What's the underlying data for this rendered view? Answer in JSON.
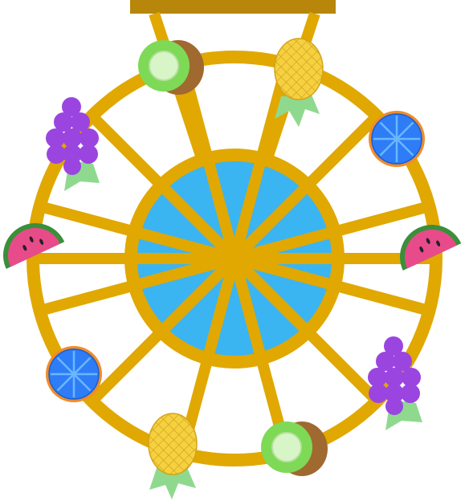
{
  "colors": {
    "background": "#ffffff",
    "beam": "#b8860b",
    "frame": "#e0a800",
    "hub": "#3bb4f2",
    "kiwi_skin": "#a0692f",
    "kiwi_flesh": "#7ed957",
    "kiwi_core": "#d8f5c8",
    "pineapple": "#f5d142",
    "pineapple_grid": "#d4a417",
    "leaf": "#8fd98f",
    "orange_rind": "#f28c28",
    "orange_flesh": "#2e7df7",
    "grape": "#9b45e0",
    "watermelon_flesh": "#e84b8a",
    "watermelon_rind": "#3a8f3a",
    "seed": "#222222"
  },
  "wheel": {
    "spoke_count": 12,
    "gondolas": [
      {
        "fruit": "kiwi",
        "name": "gondola-kiwi-top"
      },
      {
        "fruit": "pineapple",
        "name": "gondola-pineapple-top"
      },
      {
        "fruit": "orange",
        "name": "gondola-orange-right"
      },
      {
        "fruit": "watermelon",
        "name": "gondola-watermelon-right"
      },
      {
        "fruit": "grapes",
        "name": "gondola-grapes-right"
      },
      {
        "fruit": "kiwi",
        "name": "gondola-kiwi-bottom"
      },
      {
        "fruit": "pineapple",
        "name": "gondola-pineapple-bottom"
      },
      {
        "fruit": "orange",
        "name": "gondola-orange-left"
      },
      {
        "fruit": "watermelon",
        "name": "gondola-watermelon-left"
      },
      {
        "fruit": "grapes",
        "name": "gondola-grapes-left"
      }
    ]
  }
}
